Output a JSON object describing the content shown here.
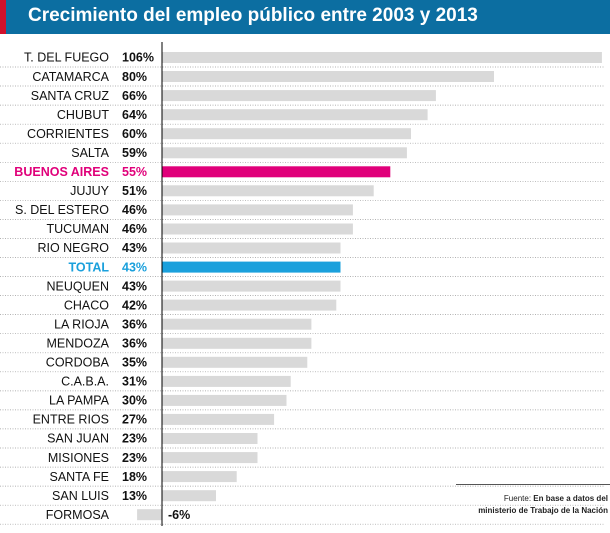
{
  "header": {
    "title": "Crecimiento del empleo público entre 2003 y 2013"
  },
  "source": {
    "label": "Fuente:",
    "line1": "En base a datos del",
    "line2": "ministerio de Trabajo de la Nación"
  },
  "colors": {
    "header_bg": "#0c6ea1",
    "header_accent": "#d0112b",
    "bar_default": "#d9d9d9",
    "highlight_buenos_aires": "#e0007a",
    "highlight_total": "#1aa0dc",
    "text": "#000000"
  },
  "chart_data": {
    "type": "bar",
    "orientation": "horizontal",
    "title": "Crecimiento del empleo público entre 2003 y 2013",
    "unit": "%",
    "categories": [
      "T. DEL FUEGO",
      "CATAMARCA",
      "SANTA CRUZ",
      "CHUBUT",
      "CORRIENTES",
      "SALTA",
      "BUENOS AIRES",
      "JUJUY",
      "S. DEL ESTERO",
      "TUCUMAN",
      "RIO NEGRO",
      "TOTAL",
      "NEUQUEN",
      "CHACO",
      "LA RIOJA",
      "MENDOZA",
      "CORDOBA",
      "C.A.B.A.",
      "LA PAMPA",
      "ENTRE RIOS",
      "SAN JUAN",
      "MISIONES",
      "SANTA FE",
      "SAN LUIS",
      "FORMOSA"
    ],
    "values": [
      106,
      80,
      66,
      64,
      60,
      59,
      55,
      51,
      46,
      46,
      43,
      43,
      43,
      42,
      36,
      36,
      35,
      31,
      30,
      27,
      23,
      23,
      18,
      13,
      -6
    ],
    "value_labels": [
      "106%",
      "80%",
      "66%",
      "64%",
      "60%",
      "59%",
      "55%",
      "51%",
      "46%",
      "46%",
      "43%",
      "43%",
      "43%",
      "42%",
      "36%",
      "36%",
      "35%",
      "31%",
      "30%",
      "27%",
      "23%",
      "23%",
      "18%",
      "13%",
      "-6%"
    ],
    "highlights": {
      "BUENOS AIRES": "#e0007a",
      "TOTAL": "#1aa0dc"
    },
    "xlim": [
      -6,
      106
    ]
  }
}
